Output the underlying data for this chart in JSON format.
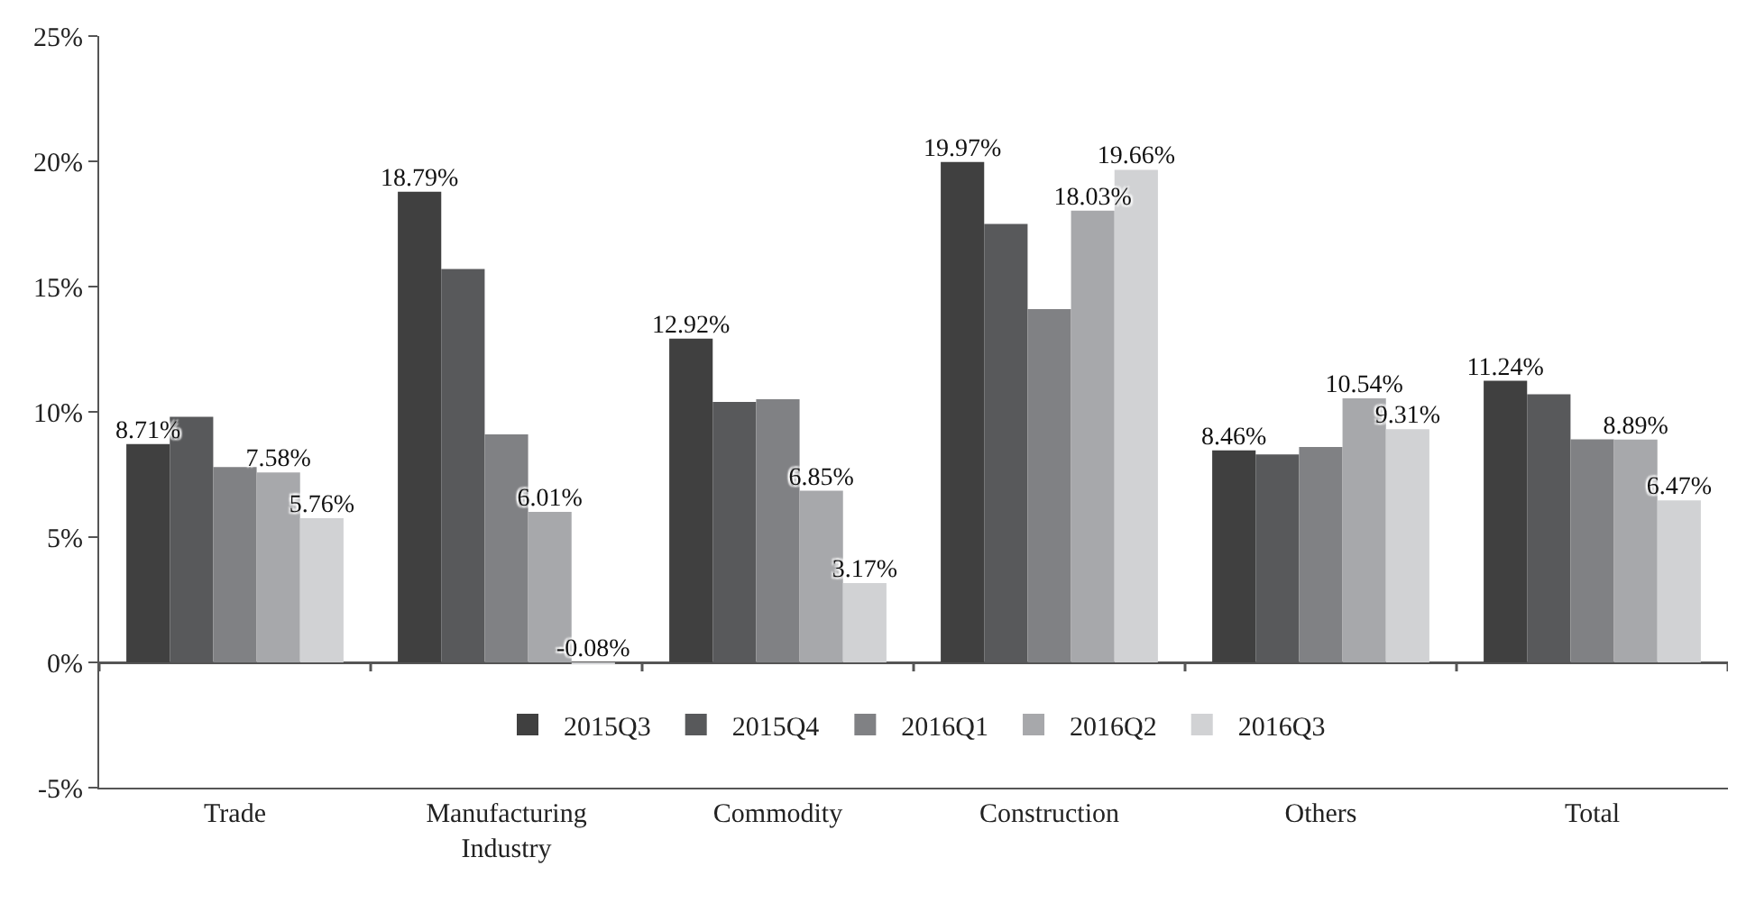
{
  "chart_data": {
    "type": "bar",
    "categories": [
      "Trade",
      "Manufacturing Industry",
      "Commodity",
      "Construction",
      "Others",
      "Total"
    ],
    "series": [
      {
        "name": "2015Q3",
        "color": "#404040",
        "values": [
          8.71,
          18.79,
          12.92,
          19.97,
          8.46,
          11.24
        ],
        "value_labels": [
          "8.71%",
          "18.79%",
          "12.92%",
          "19.97%",
          "8.46%",
          "11.24%"
        ]
      },
      {
        "name": "2015Q4",
        "color": "#58595b",
        "values": [
          9.8,
          15.7,
          10.4,
          17.5,
          8.3,
          10.7
        ],
        "value_labels": [
          null,
          null,
          null,
          null,
          null,
          null
        ]
      },
      {
        "name": "2016Q1",
        "color": "#808184",
        "values": [
          7.8,
          9.1,
          10.5,
          14.1,
          8.6,
          8.9
        ],
        "value_labels": [
          null,
          null,
          null,
          null,
          null,
          null
        ]
      },
      {
        "name": "2016Q2",
        "color": "#a7a8ab",
        "values": [
          7.58,
          6.01,
          6.85,
          18.03,
          10.54,
          8.89
        ],
        "value_labels": [
          "7.58%",
          "6.01%",
          "6.85%",
          "18.03%",
          "10.54%",
          "8.89%"
        ]
      },
      {
        "name": "2016Q3",
        "color": "#d1d2d4",
        "values": [
          5.76,
          -0.08,
          3.17,
          19.66,
          9.31,
          6.47
        ],
        "value_labels": [
          "5.76%",
          "-0.08%",
          "3.17%",
          "19.66%",
          "9.31%",
          "6.47%"
        ]
      }
    ],
    "ylim": [
      -5,
      25
    ],
    "yticks": [
      {
        "value": -5,
        "label": "-5%"
      },
      {
        "value": 0,
        "label": "0%"
      },
      {
        "value": 5,
        "label": "5%"
      },
      {
        "value": 10,
        "label": "10%"
      },
      {
        "value": 15,
        "label": "15%"
      },
      {
        "value": 20,
        "label": "20%"
      },
      {
        "value": 25,
        "label": "25%"
      }
    ],
    "legend": "bottom"
  }
}
